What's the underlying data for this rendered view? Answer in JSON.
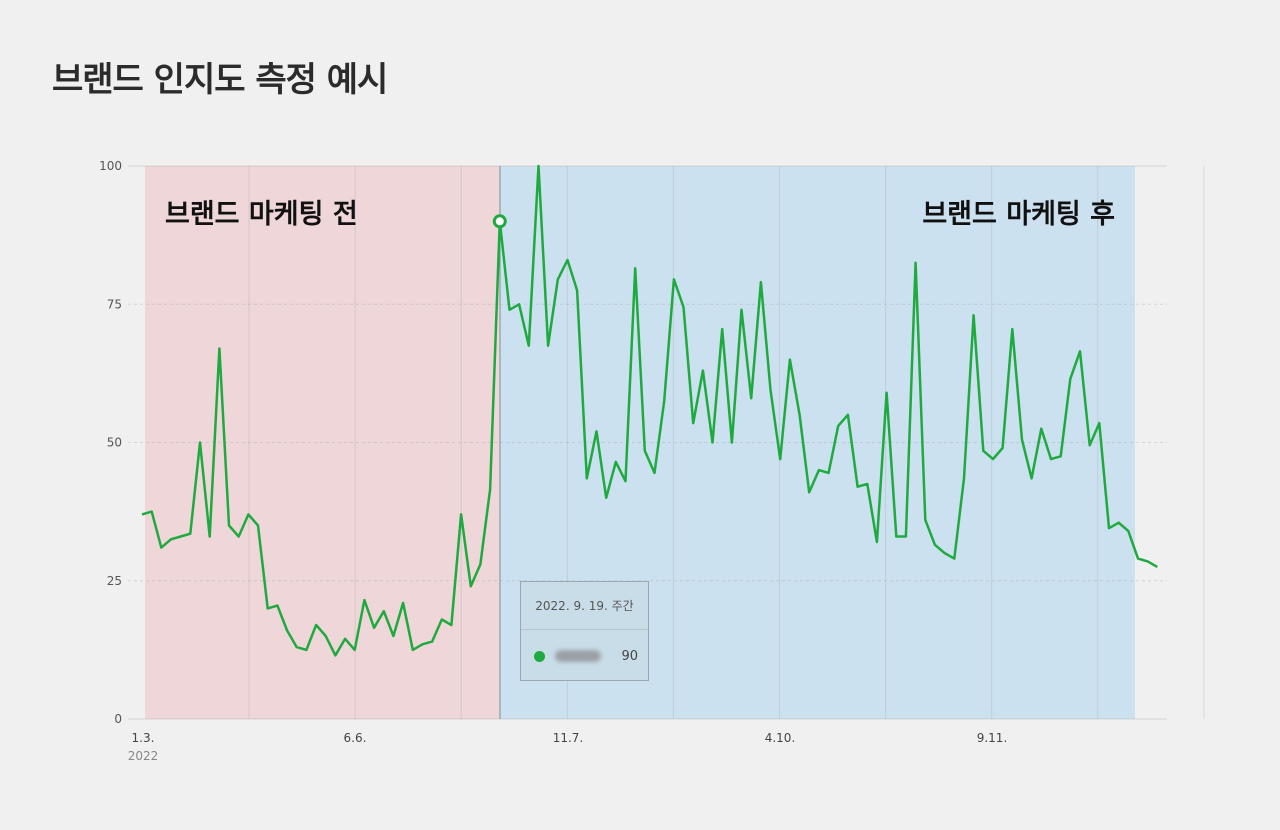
{
  "title": "브랜드 인지도 측정 예시",
  "chart_data": {
    "type": "line",
    "title": "브랜드 인지도 측정 예시",
    "xlabel": "",
    "ylabel": "",
    "ylim": [
      0,
      100
    ],
    "yticks": [
      "0",
      "25",
      "50",
      "75",
      "100"
    ],
    "xticks": [
      "1.3.",
      "6.6.",
      "11.7.",
      "4.10.",
      "9.11."
    ],
    "xtick_year": "2022",
    "grid": true,
    "series": [
      {
        "name": "브랜드",
        "color": "#1faa3f",
        "values": [
          37,
          37.5,
          31,
          32.5,
          33,
          33.5,
          50,
          33,
          67,
          35,
          33,
          37,
          35,
          20,
          20.5,
          16,
          13,
          12.5,
          17,
          15,
          11.5,
          14.5,
          12.5,
          21.5,
          16.5,
          19.5,
          15,
          21,
          12.5,
          13.5,
          14,
          18,
          17,
          37,
          24,
          28,
          41.5,
          90,
          74,
          75,
          67.5,
          100,
          67.5,
          79.5,
          83,
          77.5,
          43.5,
          52,
          40,
          46.5,
          43,
          81.5,
          48.5,
          44.5,
          57.5,
          79.5,
          74.5,
          53.5,
          63,
          50,
          70.5,
          50,
          74,
          58,
          79,
          59.5,
          47,
          65,
          55,
          41,
          45,
          44.5,
          53,
          55,
          42,
          42.5,
          32,
          59,
          33,
          33,
          82.5,
          36,
          31.5,
          30,
          29,
          43.5,
          73,
          48.5,
          47,
          49,
          70.5,
          50.5,
          43.5,
          52.5,
          47,
          47.5,
          61.5,
          66.5,
          49.5,
          53.5,
          34.5,
          35.5,
          34,
          29,
          28.5,
          27.5
        ]
      }
    ],
    "highlight_index": 37,
    "regions": [
      {
        "label": "브랜드 마케팅 전",
        "color": "#efd6d8",
        "from_index": 0,
        "to_index": 37
      },
      {
        "label": "브랜드 마케팅 후",
        "color": "#cce1ef",
        "from_index": 37,
        "to_index": 103
      }
    ],
    "tooltip": {
      "date": "2022. 9. 19. 주간",
      "value": "90"
    }
  }
}
